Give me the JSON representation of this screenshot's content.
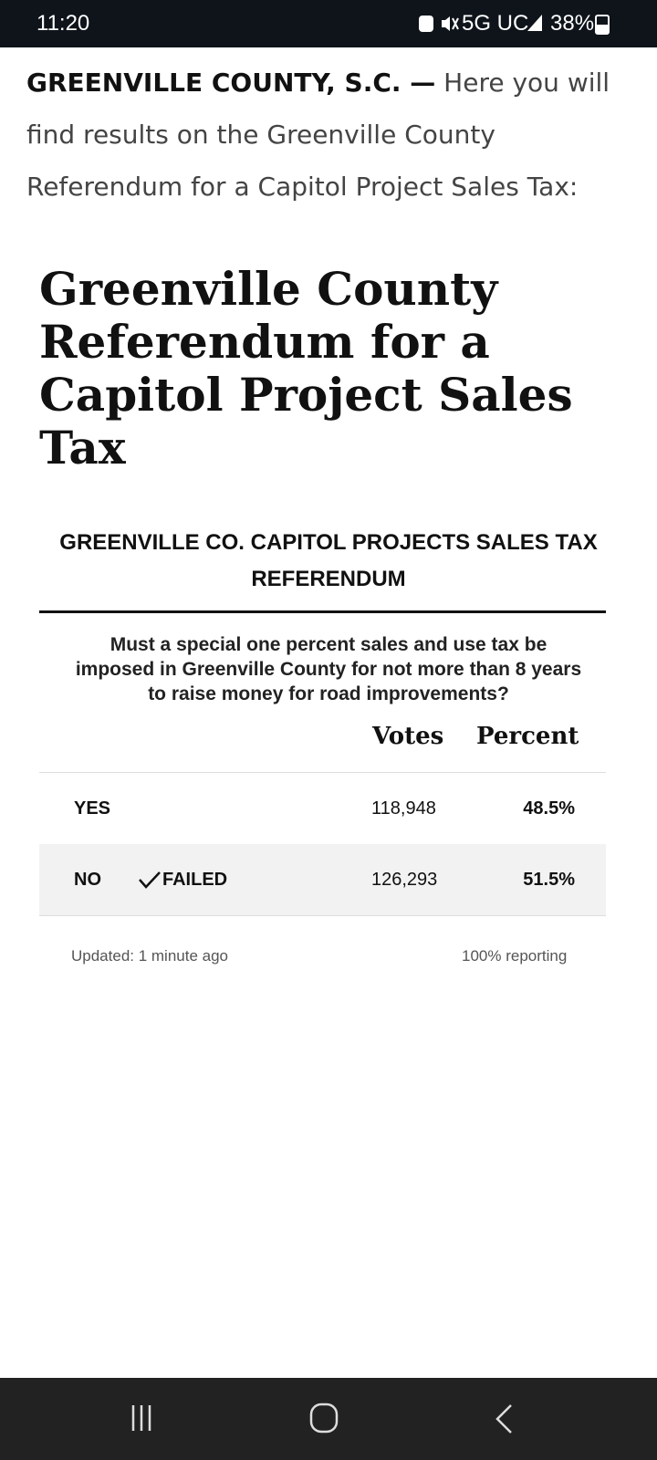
{
  "status_bar": {
    "time": "11:20",
    "network": "5G UC",
    "battery": "38%"
  },
  "article": {
    "dateline": "GREENVILLE COUNTY, S.C. —",
    "intro": "Here you will find results on the Greenville County Referendum for a Capitol Project Sales Tax:",
    "heading": "Greenville County Referendum for a Capitol Project Sales Tax"
  },
  "results": {
    "title": "GREENVILLE CO. CAPITOL PROJECTS SALES TAX REFERENDUM",
    "question": "Must a special one percent sales and use tax be imposed in Greenville County for not more than 8 years to raise money for road improvements?",
    "columns": [
      "Votes",
      "Percent"
    ],
    "rows": [
      {
        "choice": "YES",
        "votes": "118,948",
        "percent": "48.5%"
      },
      {
        "choice": "NO",
        "status": "FAILED",
        "votes": "126,293",
        "percent": "51.5%"
      }
    ],
    "updated": "Updated: 1 minute ago",
    "reporting": "100% reporting"
  }
}
